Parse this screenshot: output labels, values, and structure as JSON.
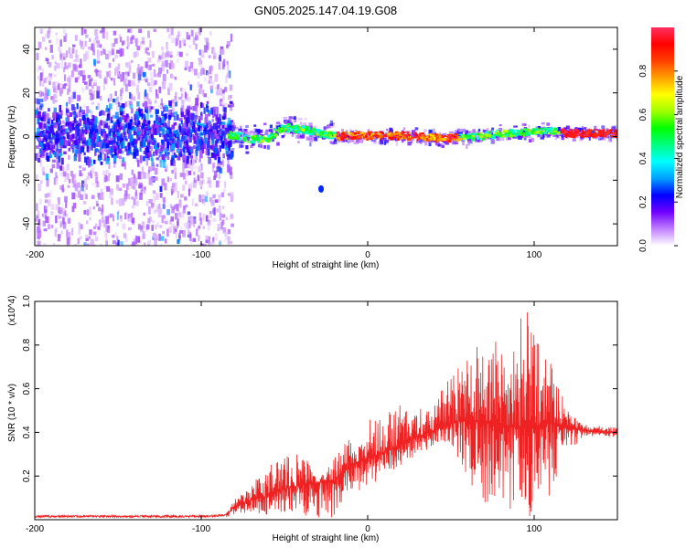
{
  "title": "GN05.2025.147.04.19.G08",
  "chart_data": [
    {
      "type": "heatmap",
      "xlabel": "Height of straight line (km)",
      "ylabel": "Frequency (Hz)",
      "xlim": [
        -200,
        150
      ],
      "ylim": [
        -50,
        50
      ],
      "x_ticks": [
        -200,
        -100,
        0,
        100
      ],
      "y_ticks": [
        -40,
        -20,
        0,
        20,
        40
      ],
      "grid": false,
      "colorbar": {
        "label": "Normalized spectral amplitude",
        "range": [
          0,
          1
        ],
        "ticks": [
          "0.0",
          "0.2",
          "0.4",
          "0.6",
          "0.8"
        ],
        "colors": [
          "#ffffff",
          "#c080ff",
          "#7000ff",
          "#0000ff",
          "#00a0ff",
          "#00ffff",
          "#00ff80",
          "#00ff00",
          "#a0ff00",
          "#ffff00",
          "#ffa000",
          "#ff4000",
          "#ff0000",
          "#ff3060"
        ]
      },
      "ridge": {
        "x": [
          -200,
          -150,
          -100,
          -80,
          -70,
          -60,
          -55,
          -50,
          -45,
          -40,
          -35,
          -30,
          -25,
          -20,
          -10,
          0,
          20,
          40,
          60,
          70,
          80,
          90,
          100,
          110,
          120,
          150
        ],
        "y": [
          2,
          2,
          2,
          1,
          -1,
          0,
          3,
          5,
          4,
          4,
          3,
          2,
          1,
          1,
          1,
          1,
          1,
          0,
          0,
          1,
          2,
          2,
          3,
          3,
          2,
          2
        ]
      },
      "outlier": {
        "x": -28,
        "y": -24
      }
    },
    {
      "type": "line",
      "xlabel": "Height of straight line (km)",
      "ylabel": "SNR (10 * v/v)",
      "y_multiplier": "(x10^4)",
      "xlim": [
        -200,
        150
      ],
      "ylim": [
        0,
        1.0
      ],
      "x_ticks": [
        -200,
        -100,
        0,
        100
      ],
      "y_ticks": [
        0.2,
        0.4,
        0.6,
        0.8,
        1.0
      ],
      "grid": false,
      "series": [
        {
          "color": "#ee2222",
          "baseline": {
            "x": [
              -200,
              -150,
              -100,
              -85,
              -80,
              -70,
              -60,
              -50,
              -40,
              -30,
              -20,
              -10,
              0,
              10,
              20,
              30,
              40,
              50,
              60,
              70,
              80,
              90,
              100,
              110,
              120,
              130,
              140,
              150
            ],
            "y": [
              0.015,
              0.015,
              0.015,
              0.02,
              0.06,
              0.09,
              0.11,
              0.14,
              0.16,
              0.17,
              0.18,
              0.25,
              0.28,
              0.31,
              0.34,
              0.38,
              0.41,
              0.44,
              0.46,
              0.45,
              0.44,
              0.42,
              0.43,
              0.44,
              0.42,
              0.41,
              0.4,
              0.4
            ]
          },
          "envelope": {
            "x": [
              -200,
              -150,
              -100,
              -85,
              -80,
              -70,
              -60,
              -50,
              -40,
              -35,
              -30,
              -20,
              -10,
              0,
              10,
              20,
              30,
              40,
              50,
              60,
              70,
              80,
              85,
              90,
              95,
              100,
              110,
              120,
              130,
              140,
              150
            ],
            "y": [
              0.02,
              0.02,
              0.02,
              0.03,
              0.1,
              0.16,
              0.25,
              0.3,
              0.32,
              0.27,
              0.17,
              0.31,
              0.38,
              0.46,
              0.5,
              0.54,
              0.5,
              0.55,
              0.66,
              0.78,
              0.85,
              0.92,
              0.97,
              0.98,
              1.0,
              0.88,
              0.72,
              0.5,
              0.44,
              0.43,
              0.42
            ]
          },
          "floor": {
            "x": [
              -200,
              -150,
              -100,
              -85,
              -80,
              -70,
              -60,
              -50,
              -40,
              -30,
              -20,
              -10,
              0,
              10,
              20,
              30,
              40,
              50,
              60,
              70,
              80,
              90,
              100,
              110,
              120,
              130,
              150
            ],
            "y": [
              0.01,
              0.01,
              0.01,
              0.01,
              0.02,
              0.02,
              0.02,
              0.03,
              0.02,
              0.0,
              0.0,
              0.1,
              0.15,
              0.2,
              0.25,
              0.3,
              0.33,
              0.35,
              0.18,
              0.08,
              0.04,
              0.0,
              0.02,
              0.1,
              0.3,
              0.38,
              0.38
            ]
          }
        }
      ]
    }
  ]
}
